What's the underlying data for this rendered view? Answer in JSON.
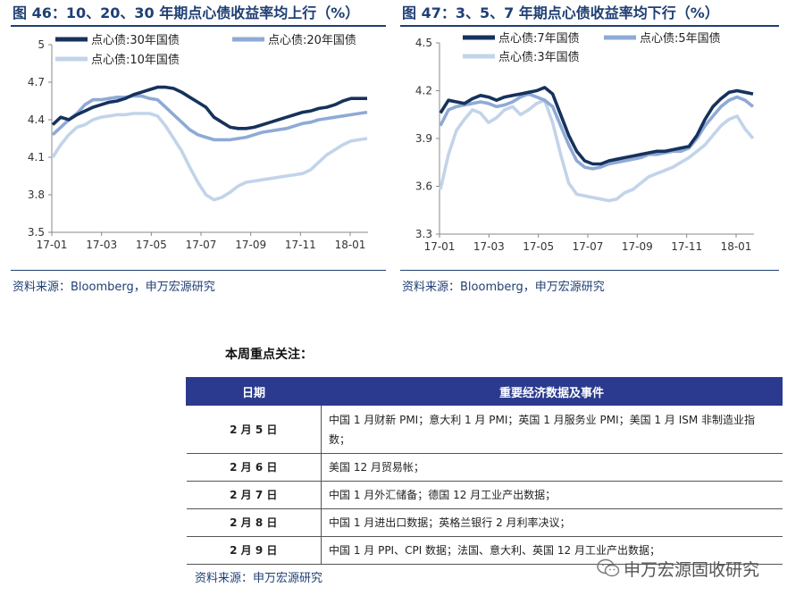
{
  "figures": [
    {
      "title": "图 46：10、20、30 年期点心债收益率均上行（%）",
      "source": "资料来源：Bloomberg，申万宏源研究"
    },
    {
      "title": "图 47：3、5、7 年期点心债收益率均下行（%）",
      "source": "资料来源：Bloomberg，申万宏源研究"
    }
  ],
  "chart_data": [
    {
      "type": "line",
      "x_ticks": [
        "17-01",
        "17-03",
        "17-05",
        "17-07",
        "17-09",
        "17-11",
        "18-01"
      ],
      "yticks": [
        3.5,
        3.8,
        4.1,
        4.4,
        4.7,
        5
      ],
      "ylim": [
        3.5,
        5.0
      ],
      "grid": false,
      "legend": "top",
      "series": [
        {
          "name": "点心债:30年国债",
          "color": "#16325c",
          "width": 3.6,
          "values": [
            4.36,
            4.42,
            4.4,
            4.44,
            4.47,
            4.5,
            4.52,
            4.54,
            4.55,
            4.57,
            4.6,
            4.62,
            4.64,
            4.66,
            4.66,
            4.65,
            4.62,
            4.58,
            4.54,
            4.5,
            4.42,
            4.38,
            4.34,
            4.33,
            4.33,
            4.34,
            4.36,
            4.38,
            4.4,
            4.42,
            4.44,
            4.46,
            4.47,
            4.49,
            4.5,
            4.52,
            4.55,
            4.57,
            4.57,
            4.57
          ]
        },
        {
          "name": "点心债:20年国债",
          "color": "#8eaad6",
          "width": 3.6,
          "values": [
            4.28,
            4.34,
            4.4,
            4.45,
            4.52,
            4.56,
            4.56,
            4.57,
            4.58,
            4.58,
            4.59,
            4.59,
            4.57,
            4.56,
            4.5,
            4.44,
            4.38,
            4.32,
            4.28,
            4.26,
            4.24,
            4.24,
            4.24,
            4.25,
            4.26,
            4.28,
            4.3,
            4.31,
            4.32,
            4.33,
            4.35,
            4.37,
            4.38,
            4.4,
            4.41,
            4.42,
            4.43,
            4.44,
            4.45,
            4.46
          ]
        },
        {
          "name": "点心债:10年国债",
          "color": "#c2d4ea",
          "width": 3.6,
          "values": [
            4.1,
            4.2,
            4.28,
            4.34,
            4.36,
            4.4,
            4.42,
            4.43,
            4.44,
            4.44,
            4.45,
            4.45,
            4.45,
            4.43,
            4.35,
            4.25,
            4.15,
            4.02,
            3.9,
            3.8,
            3.76,
            3.78,
            3.82,
            3.87,
            3.9,
            3.91,
            3.92,
            3.93,
            3.94,
            3.95,
            3.96,
            3.97,
            4.0,
            4.06,
            4.12,
            4.16,
            4.2,
            4.23,
            4.24,
            4.25
          ]
        }
      ]
    },
    {
      "type": "line",
      "x_ticks": [
        "17-01",
        "17-03",
        "17-05",
        "17-07",
        "17-09",
        "17-11",
        "18-01"
      ],
      "yticks": [
        3.3,
        3.6,
        3.9,
        4.2,
        4.5
      ],
      "ylim": [
        3.3,
        4.5
      ],
      "grid": false,
      "legend": "top",
      "series": [
        {
          "name": "点心债:7年国债",
          "color": "#16325c",
          "width": 3.6,
          "values": [
            4.06,
            4.14,
            4.13,
            4.12,
            4.15,
            4.17,
            4.16,
            4.14,
            4.16,
            4.17,
            4.18,
            4.19,
            4.2,
            4.22,
            4.18,
            4.05,
            3.92,
            3.82,
            3.76,
            3.74,
            3.74,
            3.76,
            3.77,
            3.78,
            3.79,
            3.8,
            3.81,
            3.82,
            3.82,
            3.83,
            3.84,
            3.85,
            3.92,
            4.02,
            4.1,
            4.15,
            4.19,
            4.2,
            4.19,
            4.18
          ]
        },
        {
          "name": "点心债:5年国债",
          "color": "#8eaad6",
          "width": 3.6,
          "values": [
            3.98,
            4.08,
            4.1,
            4.11,
            4.12,
            4.13,
            4.12,
            4.1,
            4.11,
            4.13,
            4.16,
            4.18,
            4.16,
            4.14,
            4.1,
            3.98,
            3.86,
            3.76,
            3.72,
            3.71,
            3.72,
            3.74,
            3.75,
            3.76,
            3.77,
            3.78,
            3.8,
            3.8,
            3.81,
            3.82,
            3.82,
            3.84,
            3.9,
            3.98,
            4.04,
            4.1,
            4.14,
            4.16,
            4.14,
            4.1
          ]
        },
        {
          "name": "点心债:3年国债",
          "color": "#c2d4ea",
          "width": 3.6,
          "values": [
            3.58,
            3.8,
            3.95,
            4.02,
            4.08,
            4.06,
            4.0,
            4.03,
            4.08,
            4.1,
            4.05,
            4.08,
            4.12,
            4.14,
            4.0,
            3.8,
            3.62,
            3.55,
            3.54,
            3.53,
            3.52,
            3.51,
            3.52,
            3.56,
            3.58,
            3.62,
            3.66,
            3.68,
            3.7,
            3.72,
            3.75,
            3.78,
            3.82,
            3.86,
            3.92,
            3.98,
            4.02,
            4.04,
            3.96,
            3.9
          ]
        }
      ]
    }
  ],
  "events": {
    "section_title": "本周重点关注：",
    "col_date": "日期",
    "col_event": "重要经济数据及事件",
    "rows": [
      {
        "date": "2 月 5 日",
        "event": "中国 1 月财新 PMI；意大利 1 月 PMI；英国 1 月服务业 PMI；美国 1 月 ISM 非制造业指数；"
      },
      {
        "date": "2 月 6 日",
        "event": "美国 12 月贸易帐；"
      },
      {
        "date": "2 月 7 日",
        "event": "中国 1 月外汇储备；德国 12 月工业产出数据；"
      },
      {
        "date": "2 月 8 日",
        "event": "中国 1 月进出口数据；英格兰银行 2 月利率决议；"
      },
      {
        "date": "2 月 9 日",
        "event": "中国 1 月 PPI、CPI 数据；法国、意大利、英国 12 月工业产出数据；"
      }
    ],
    "source": "资料来源：申万宏源研究"
  },
  "watermark": {
    "text": "申万宏源固收研究",
    "icon": "wechat-icon"
  }
}
